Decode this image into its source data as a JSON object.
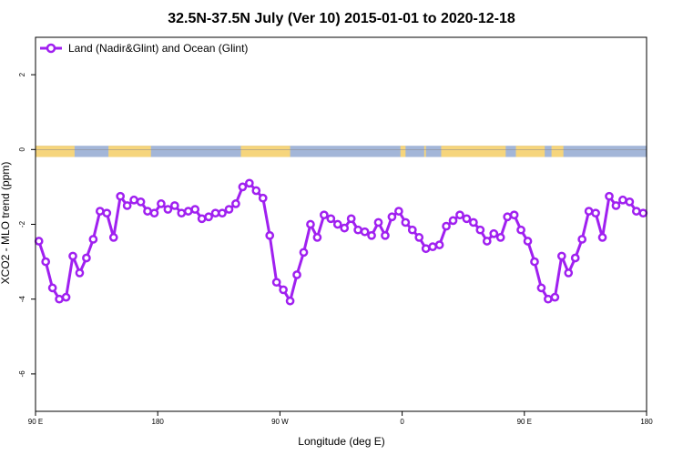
{
  "chart_data": {
    "type": "line",
    "title": "32.5N-37.5N July (Ver 10)   2015-01-01 to 2020-12-18",
    "xlabel": "Longitude (deg E)",
    "ylabel": "XCO2 - MLO trend (ppm)",
    "xlim": [
      90,
      450
    ],
    "ylim": [
      -7,
      3
    ],
    "x_ticks": [
      {
        "value": 90,
        "label": "90 E"
      },
      {
        "value": 162,
        "label": "180"
      },
      {
        "value": 234,
        "label": "90 W"
      },
      {
        "value": 306,
        "label": "0"
      },
      {
        "value": 378,
        "label": "90 E"
      },
      {
        "value": 450,
        "label": "180"
      }
    ],
    "y_ticks": [
      {
        "value": 2,
        "label": "2"
      },
      {
        "value": 0,
        "label": "0"
      },
      {
        "value": -2,
        "label": "-2"
      },
      {
        "value": -4,
        "label": "-4"
      },
      {
        "value": -6,
        "label": "-6"
      }
    ],
    "legend": {
      "position": "top-left",
      "entries": [
        {
          "label": "Land (Nadir&Glint) and Ocean (Glint)",
          "color": "#a020f0"
        }
      ]
    },
    "colors": {
      "series": "#a020f0",
      "land": "#f6d57c",
      "ocean": "#a3b6d8"
    },
    "land_ocean_strip": {
      "y_range": [
        -0.2,
        0.1
      ],
      "land_segments": [
        [
          90,
          113
        ],
        [
          133,
          158
        ],
        [
          211,
          240
        ],
        [
          305,
          308
        ],
        [
          319,
          320
        ],
        [
          329,
          367
        ],
        [
          373,
          390
        ],
        [
          394,
          401
        ]
      ]
    },
    "series": [
      {
        "name": "Land (Nadir&Glint) and Ocean (Glint)",
        "x": [
          92,
          96,
          100,
          104,
          108,
          112,
          116,
          120,
          124,
          128,
          132,
          136,
          140,
          144,
          148,
          152,
          156,
          160,
          164,
          168,
          172,
          176,
          180,
          184,
          188,
          192,
          196,
          200,
          204,
          208,
          212,
          216,
          220,
          224,
          228,
          232,
          236,
          240,
          244,
          248,
          252,
          256,
          260,
          264,
          268,
          272,
          276,
          280,
          284,
          288,
          292,
          296,
          300,
          304,
          308,
          312,
          316,
          320,
          324,
          328,
          332,
          336,
          340,
          344,
          348,
          352,
          356,
          360,
          364,
          368,
          372,
          376,
          380,
          384,
          388,
          392,
          396,
          400,
          404,
          408,
          412,
          416,
          420,
          424,
          428,
          432,
          436,
          440,
          444,
          448
        ],
        "y": [
          -2.45,
          -3.0,
          -3.7,
          -4.0,
          -3.95,
          -2.85,
          -3.3,
          -2.9,
          -2.4,
          -1.65,
          -1.7,
          -2.35,
          -1.25,
          -1.5,
          -1.35,
          -1.4,
          -1.65,
          -1.7,
          -1.45,
          -1.6,
          -1.5,
          -1.7,
          -1.65,
          -1.6,
          -1.85,
          -1.8,
          -1.7,
          -1.7,
          -1.6,
          -1.45,
          -1.0,
          -0.9,
          -1.1,
          -1.3,
          -2.3,
          -3.55,
          -3.75,
          -4.05,
          -3.35,
          -2.75,
          -2.0,
          -2.35,
          -1.75,
          -1.85,
          -2.0,
          -2.1,
          -1.85,
          -2.15,
          -2.2,
          -2.3,
          -1.95,
          -2.3,
          -1.8,
          -1.65,
          -1.95,
          -2.15,
          -2.35,
          -2.65,
          -2.6,
          -2.55,
          -2.05,
          -1.9,
          -1.75,
          -1.85,
          -1.95,
          -2.15,
          -2.45,
          -2.25,
          -2.35,
          -1.8,
          -1.75,
          -2.15,
          -2.45,
          -3.0,
          -3.7,
          -4.0,
          -3.95,
          -2.85,
          -3.3,
          -2.9,
          -2.4,
          -1.65,
          -1.7,
          -2.35,
          -1.25,
          -1.5,
          -1.35,
          -1.4,
          -1.65,
          -1.7
        ]
      }
    ]
  }
}
